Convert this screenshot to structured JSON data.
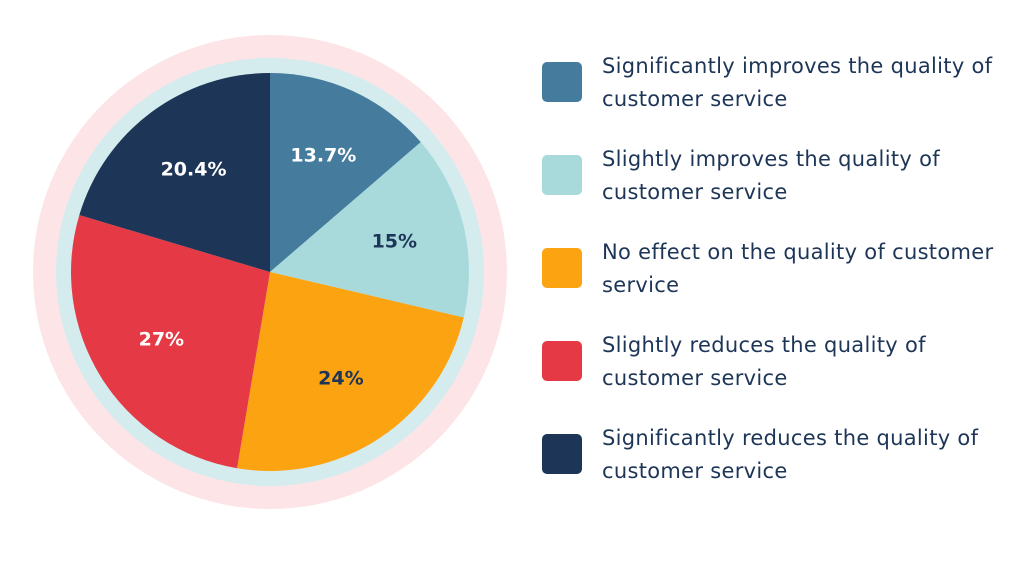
{
  "chart_data": {
    "type": "pie",
    "title": "",
    "slices": [
      {
        "label": "Significantly improves the quality of customer service",
        "value": 13.7,
        "display": "13.7%",
        "color": "#457b9d",
        "label_color": "#ffffff"
      },
      {
        "label": "Slightly improves the quality of customer service",
        "value": 15,
        "display": "15%",
        "color": "#a8dadc",
        "label_color": "#1d3557"
      },
      {
        "label": "No effect on the quality of customer service",
        "value": 24,
        "display": "24%",
        "color": "#fca311",
        "label_color": "#1d3557"
      },
      {
        "label": "Slightly reduces the quality of customer service",
        "value": 27,
        "display": "27%",
        "color": "#e63946",
        "label_color": "#ffffff"
      },
      {
        "label": "Significantly reduces the quality of customer service",
        "value": 20.4,
        "display": "20.4%",
        "color": "#1d3557",
        "label_color": "#ffffff"
      }
    ],
    "start_angle": "12 o'clock",
    "direction": "clockwise",
    "legend_position": "right",
    "ring_colors": {
      "outer": "#fde4e6",
      "inner": "#d4ecee"
    }
  }
}
